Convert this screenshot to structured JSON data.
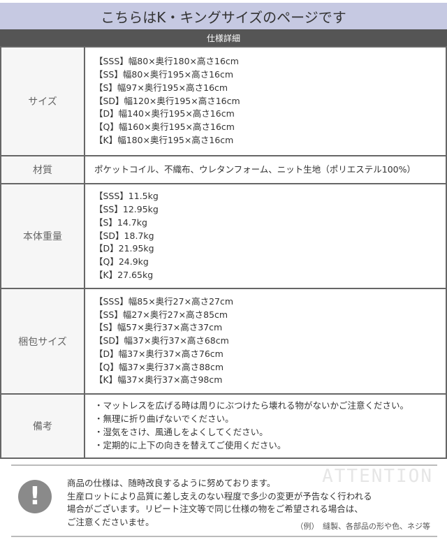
{
  "page_title": "こちらはK・キングサイズのページです",
  "table_header": "仕様詳細",
  "rows": [
    {
      "label": "サイズ",
      "lines": [
        "【SSS】幅80×奥行180×高さ16cm",
        "【SS】幅80×奥行195×高さ16cm",
        "【S】幅97×奥行195×高さ16cm",
        "【SD】幅120×奥行195×高さ16cm",
        "【D】幅140×奥行195×高さ16cm",
        "【Q】幅160×奥行195×高さ16cm",
        "【K】幅180×奥行195×高さ16cm"
      ]
    },
    {
      "label": "材質",
      "lines": [
        "ポケットコイル、不織布、ウレタンフォーム、ニット生地（ポリエステル100%）"
      ]
    },
    {
      "label": "本体重量",
      "lines": [
        "【SSS】11.5kg",
        "【SS】12.95kg",
        "【S】14.7kg",
        "【SD】18.7kg",
        "【D】21.95kg",
        "【Q】24.9kg",
        "【K】27.65kg"
      ]
    },
    {
      "label": "梱包サイズ",
      "lines": [
        "【SSS】幅85×奥行27×高さ27cm",
        "【SS】幅27×奥行27×高さ85cm",
        "【S】幅57×奥行37×高さ37cm",
        "【SD】幅37×奥行37×高さ68cm",
        "【D】幅37×奥行37×高さ76cm",
        "【Q】幅37×奥行37×高さ88cm",
        "【K】幅37×奥行37×高さ98cm"
      ]
    },
    {
      "label": "備考",
      "lines": [
        "・マットレスを広げる時は周りにぶつけたら壊れる物がないかご注意ください。",
        "・無理に折り曲げないでください。",
        "・湿気をさけ、風通しをよくしてください。",
        "・定期的に上下の向きを替えてご使用ください。"
      ]
    }
  ],
  "notice": {
    "icon": "exclamation-icon",
    "watermark": "ATTENTION",
    "lines": [
      "商品の仕様は、随時改良するように努めております。",
      "生産ロットにより品質に差し支えのない程度で多少の変更が予告なく行われる",
      "場合がございます。リピート注文等で同じ仕様の物をご希望される場合は、",
      "ご注意くださいませ。"
    ],
    "example": "（例）　縫製、各部品の形や色、ネジ等"
  }
}
